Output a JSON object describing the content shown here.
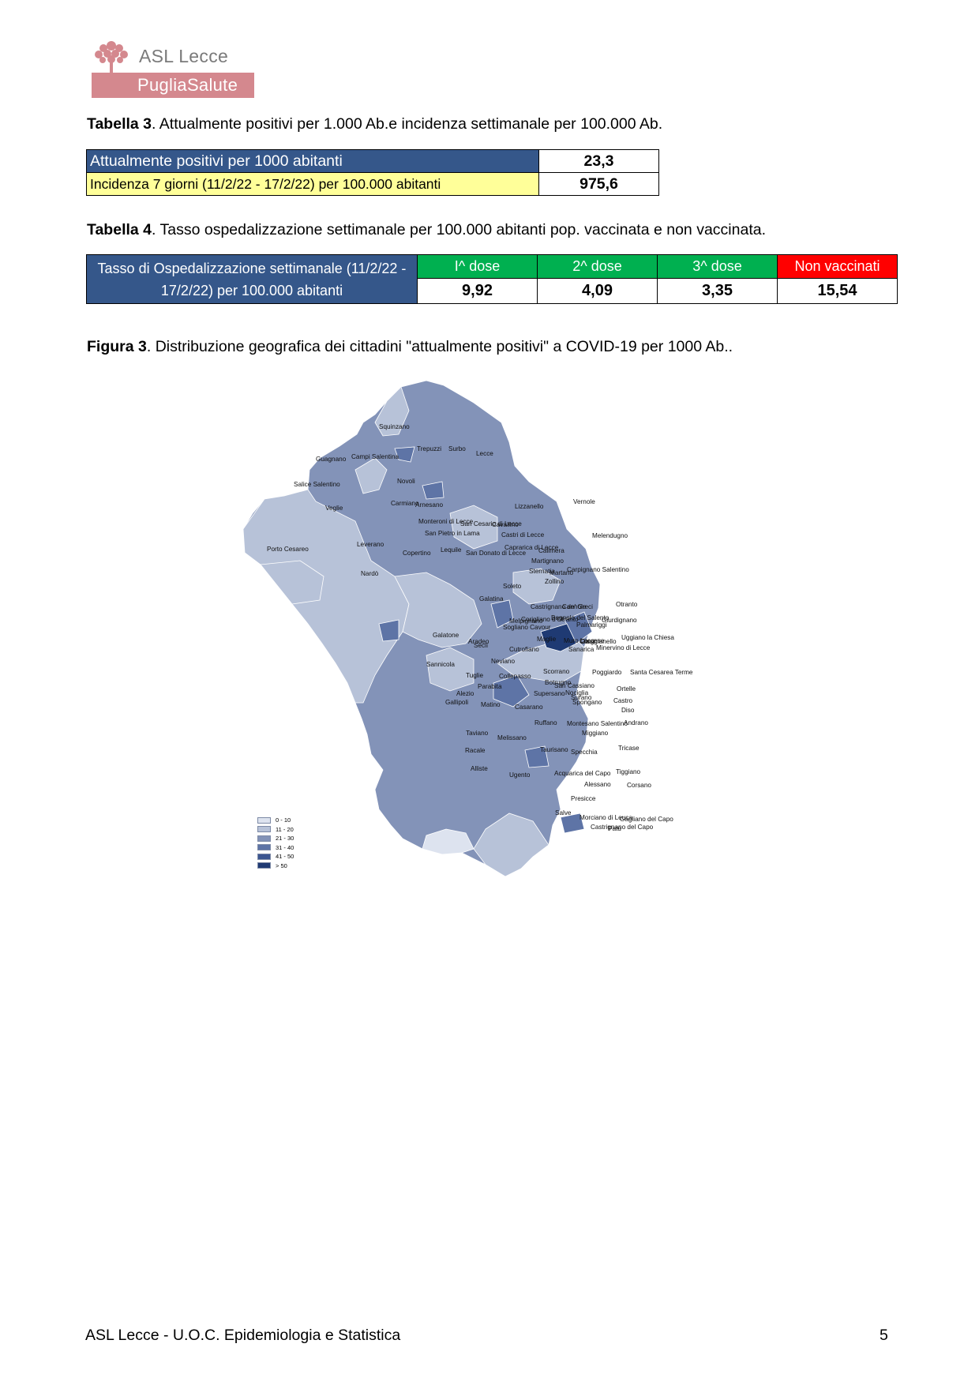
{
  "header": {
    "logo_name": "ASL Lecce",
    "logo_sub": "PugliaSalute",
    "logo_color": "#d4888e"
  },
  "table3": {
    "caption_bold": "Tabella 3",
    "caption_text": ". Attualmente positivi per 1.000 Ab.e incidenza settimanale per 100.000 Ab.",
    "rows": [
      {
        "label": "Attualmente positivi per 1000 abitanti",
        "value": "23,3"
      },
      {
        "label": "Incidenza 7 giorni (11/2/22 - 17/2/22)  per 100.000 abitanti",
        "value": "975,6"
      }
    ]
  },
  "table4": {
    "caption_bold": "Tabella 4",
    "caption_text": ". Tasso ospedalizzazione settimanale per 100.000 abitanti pop. vaccinata e non vaccinata.",
    "row_label": "Tasso di Ospedalizzazione settimanale (11/2/22 - 17/2/22)  per 100.000 abitanti",
    "headers": [
      "I^ dose",
      "2^ dose",
      "3^ dose",
      "Non vaccinati"
    ],
    "values": [
      "9,92",
      "4,09",
      "3,35",
      "15,54"
    ]
  },
  "figure3": {
    "caption_bold": "Figura 3",
    "caption_text": ". Distribuzione  geografica dei cittadini \"attualmente positivi\" a COVID-19 per 1000 Ab..",
    "legend": [
      {
        "label": "0 - 10",
        "color": "#dde3ef"
      },
      {
        "label": "11 - 20",
        "color": "#b7c2d8"
      },
      {
        "label": "21 - 30",
        "color": "#8393b8"
      },
      {
        "label": "31 - 40",
        "color": "#5e74a6"
      },
      {
        "label": "41 - 50",
        "color": "#3b5590"
      },
      {
        "label": "> 50",
        "color": "#1f3a73"
      }
    ],
    "towns": [
      "Squinzano",
      "Trepuzzi",
      "Surbo",
      "Lecce",
      "Guagnano",
      "Campi Salentina",
      "Salice Salentino",
      "Novoli",
      "Veglie",
      "Carmiano",
      "Arnesano",
      "Lizzanello",
      "Vernole",
      "Monteroni di Lecce",
      "San Cesario di Lecce",
      "Cavallino",
      "San Pietro in Lama",
      "Castri di Lecce",
      "Melendugno",
      "Leverano",
      "Porto Cesareo",
      "Lequile",
      "Caprarica di Lecce",
      "Copertino",
      "San Donato di Lecce",
      "Calimera",
      "Martignano",
      "Sternatia",
      "Carpignano Salentino",
      "Martano",
      "Nardò",
      "Zollino",
      "Soleto",
      "Galatina",
      "Castrignano de' Greci",
      "Cannole",
      "Otranto",
      "Corigliano d'Otranto",
      "Bagnolo del Salento",
      "Melpignano",
      "Giurdignano",
      "Palmariggi",
      "Sogliano Cavour",
      "Galatone",
      "Aradeo",
      "Uggiano la Chiesa",
      "Maglie",
      "Muro Leccese",
      "Cursi",
      "Giuggianello",
      "Seclì",
      "Cutrofiano",
      "Sanarica",
      "Minervino di Lecce",
      "Neviano",
      "Scorrano",
      "Santa Cesarea Terme",
      "Poggiardo",
      "Sannicola",
      "Tuglie",
      "Collepasso",
      "Botrugno",
      "San Cassiano",
      "Parabita",
      "Ortelle",
      "Alezio",
      "Supersano",
      "Nociglia",
      "Surano",
      "Spongano",
      "Castro",
      "Gallipoli",
      "Matino",
      "Casarano",
      "Diso",
      "Ruffano",
      "Montesano Salentino",
      "Andrano",
      "Taviano",
      "Miggiano",
      "Melissano",
      "Tricase",
      "Racale",
      "Taurisano",
      "Specchia",
      "Alliste",
      "Ugento",
      "Acquarica del Capo",
      "Tiggiano",
      "Alessano",
      "Corsano",
      "Presicce",
      "Salve",
      "Morciano di Leuca",
      "Gagliano del Capo",
      "Patù",
      "Castrignano del Capo"
    ]
  },
  "footer": {
    "left": "ASL Lecce - U.O.C. Epidemiologia e Statistica",
    "page": "5"
  }
}
